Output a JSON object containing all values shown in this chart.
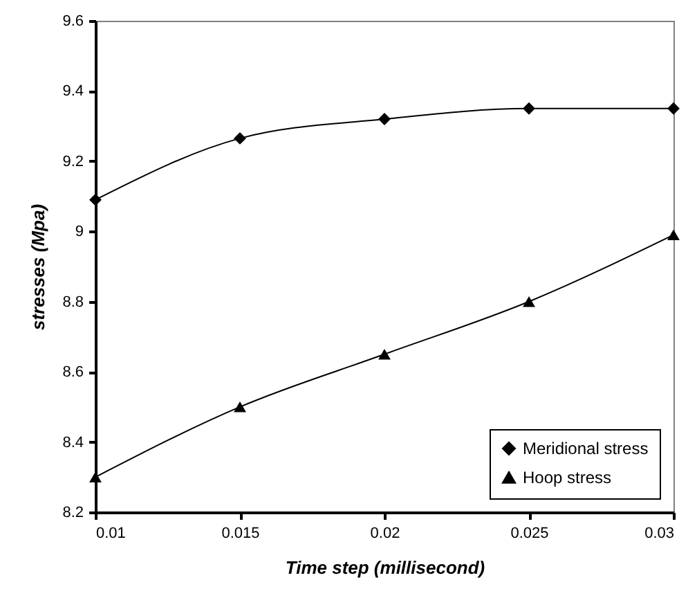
{
  "chart_data": {
    "type": "line",
    "xlabel": "Time step (millisecond)",
    "ylabel": "stresses (Mpa)",
    "x": [
      0.01,
      0.015,
      0.02,
      0.025,
      0.03
    ],
    "series": [
      {
        "name": "Meridional stress",
        "color": "#000000",
        "marker": "diamond",
        "values": [
          9.09,
          9.265,
          9.32,
          9.35,
          9.35
        ]
      },
      {
        "name": "Hoop stress",
        "color": "#000000",
        "marker": "triangle",
        "values": [
          8.3,
          8.5,
          8.65,
          8.8,
          8.99
        ]
      }
    ],
    "xlim": [
      0.01,
      0.03
    ],
    "xticks": [
      0.01,
      0.015,
      0.02,
      0.025,
      0.03
    ],
    "ylim": [
      8.2,
      9.6
    ],
    "yticks": [
      8.2,
      8.4,
      8.6,
      8.8,
      9,
      9.2,
      9.4,
      9.6
    ],
    "grid": false,
    "legend": "bottom right",
    "line_style": "solid"
  }
}
